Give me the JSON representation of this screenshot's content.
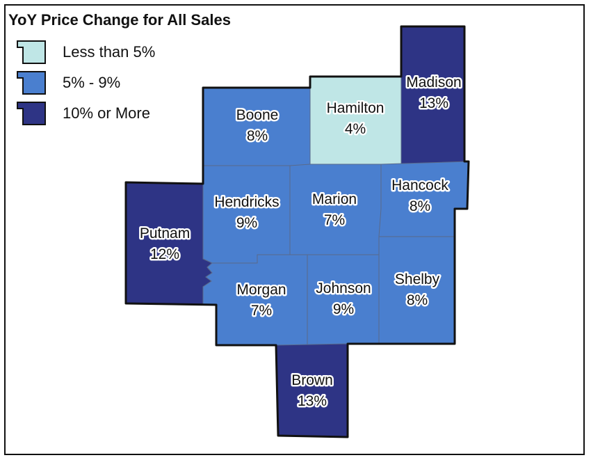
{
  "title": "YoY Price Change for All Sales",
  "legend": [
    {
      "label": "Less than 5%",
      "color": "#bfe6e6"
    },
    {
      "label": "5% - 9%",
      "color": "#4a7fcf"
    },
    {
      "label": "10% or More",
      "color": "#2e3485"
    }
  ],
  "counties": [
    {
      "name": "Boone",
      "value": "8%",
      "category": 1
    },
    {
      "name": "Hamilton",
      "value": "4%",
      "category": 0
    },
    {
      "name": "Madison",
      "value": "13%",
      "category": 2
    },
    {
      "name": "Hendricks",
      "value": "9%",
      "category": 1
    },
    {
      "name": "Marion",
      "value": "7%",
      "category": 1
    },
    {
      "name": "Hancock",
      "value": "8%",
      "category": 1
    },
    {
      "name": "Putnam",
      "value": "12%",
      "category": 2
    },
    {
      "name": "Morgan",
      "value": "7%",
      "category": 1
    },
    {
      "name": "Johnson",
      "value": "9%",
      "category": 1
    },
    {
      "name": "Shelby",
      "value": "8%",
      "category": 1
    },
    {
      "name": "Brown",
      "value": "13%",
      "category": 2
    }
  ],
  "colors": {
    "border": "#111111",
    "inner_border": "#5a6a8a"
  }
}
